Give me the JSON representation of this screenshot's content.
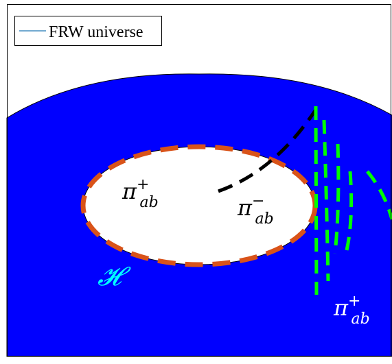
{
  "legend": {
    "entries": [
      {
        "label": "FRW universe",
        "line_color": "#1f77b4"
      }
    ]
  },
  "labels": {
    "pi_symbol": "π",
    "subscript": "ab",
    "sup_plus": "+",
    "sup_minus": "−",
    "horizon": "𝓗"
  },
  "colors": {
    "universe_fill": "#0000ff",
    "horizon_dash": "#d95319",
    "horizon_label": "#00ffff",
    "inner_label": "#000000",
    "outer_label": "#ffffff",
    "black_dash": "#000000",
    "green_dash": "#00ff00",
    "background": "#ffffff",
    "frame_stroke": "#000000"
  }
}
